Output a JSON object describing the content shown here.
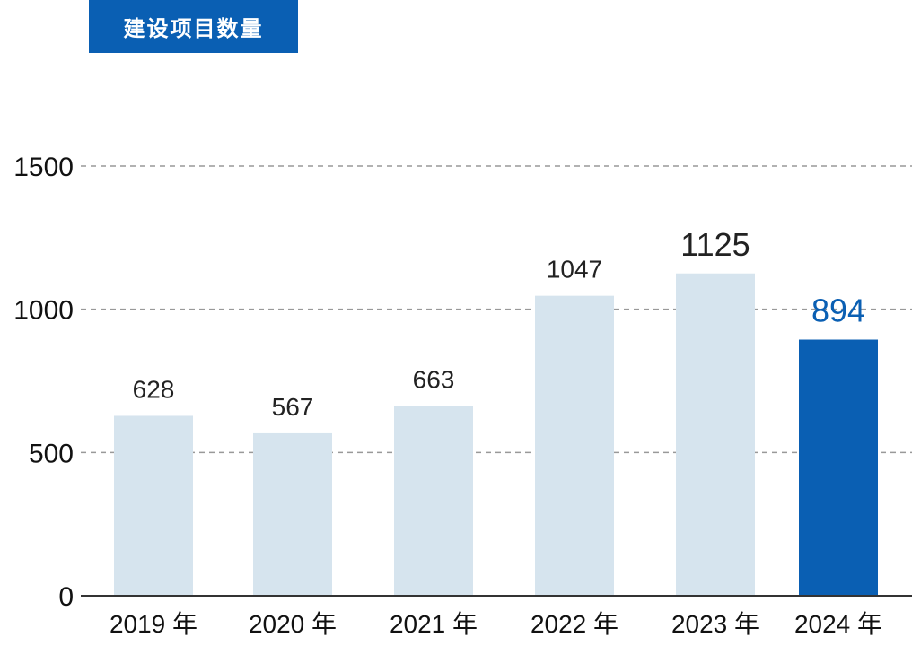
{
  "colors": {
    "title_bg": "#0a5fb3",
    "bar": "#d6e4ee",
    "bar_highlight": "#0a5fb3",
    "highlight_label": "#0a5fb3",
    "grid": "#999999",
    "axis": "#333333"
  },
  "chart_data": {
    "type": "bar",
    "title": "建设项目数量",
    "xlabel": "",
    "ylabel": "",
    "categories": [
      "2019 年",
      "2020 年",
      "2021 年",
      "2022 年",
      "2023 年",
      "2024 年"
    ],
    "values": [
      628,
      567,
      663,
      1047,
      1125,
      894
    ],
    "value_labels": [
      "628",
      "567",
      "663",
      "1047",
      "1125",
      "894"
    ],
    "highlight_index": 5,
    "ylim": [
      0,
      1500
    ],
    "yticks": [
      0,
      500,
      1000,
      1500
    ],
    "ytick_labels": [
      "0",
      "500",
      "1000",
      "1500"
    ],
    "grid": true,
    "grid_style": "dashed",
    "legend": "none"
  }
}
